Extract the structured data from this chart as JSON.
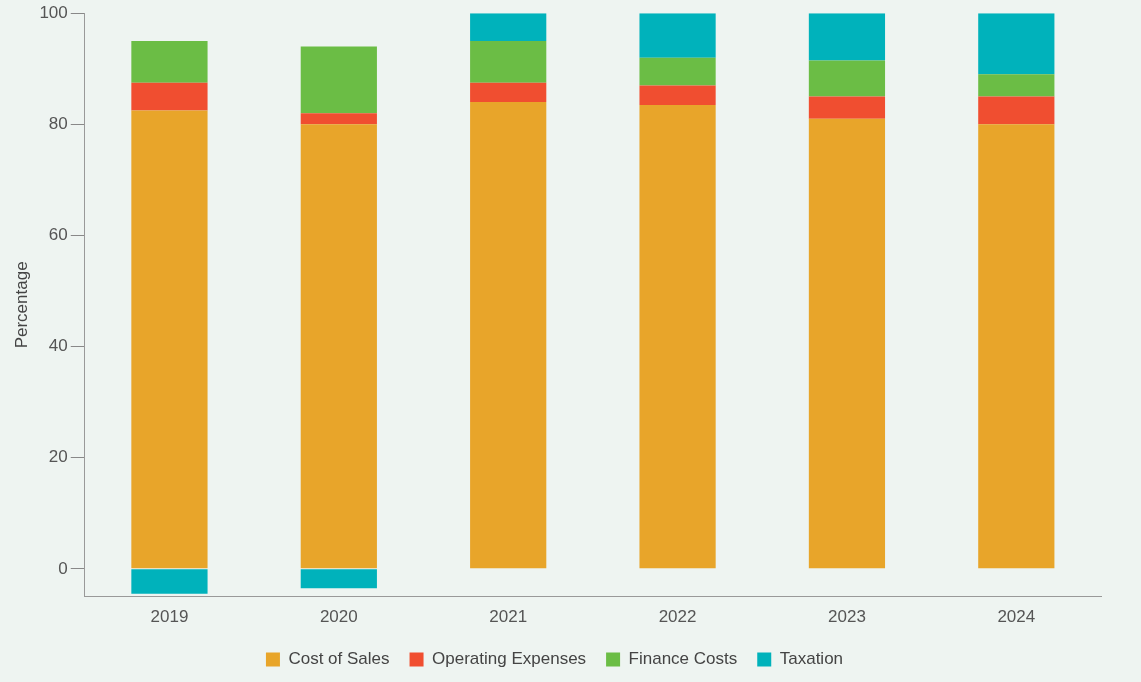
{
  "chart_data": {
    "type": "bar",
    "stacked": true,
    "ylabel": "Percentage",
    "categories": [
      "2019",
      "2020",
      "2021",
      "2022",
      "2023",
      "2024"
    ],
    "series": [
      {
        "name": "Cost of Sales",
        "color": "#e8a52a",
        "values": [
          82.5,
          80,
          84,
          83.5,
          81,
          80
        ]
      },
      {
        "name": "Operating Expenses",
        "color": "#f04e30",
        "values": [
          5,
          2,
          3.5,
          3.5,
          4,
          5
        ]
      },
      {
        "name": "Finance Costs",
        "color": "#6bbd45",
        "values": [
          7.5,
          12,
          7.5,
          5,
          6.5,
          4
        ]
      },
      {
        "name": "Taxation",
        "color": "#00b2bb",
        "values": [
          -4.5,
          -3.5,
          5,
          8,
          8.5,
          11
        ]
      }
    ],
    "ylim": [
      -5,
      100
    ],
    "yticks": [
      0,
      20,
      40,
      60,
      80,
      100
    ],
    "grid": false,
    "legend": "bottom"
  }
}
